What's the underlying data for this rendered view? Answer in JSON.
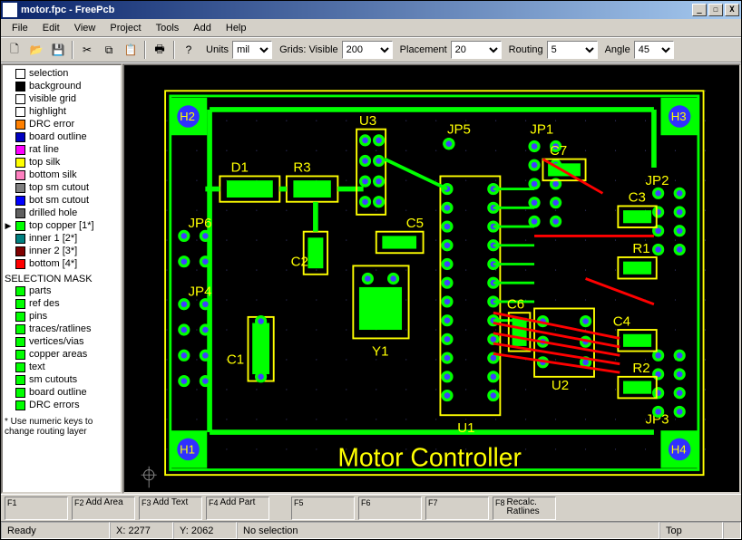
{
  "titlebar": {
    "title": "motor.fpc - FreePcb",
    "min": "_",
    "max": "☐",
    "close": "X"
  },
  "menu": [
    "File",
    "Edit",
    "View",
    "Project",
    "Tools",
    "Add",
    "Help"
  ],
  "toolbar": {
    "icons": [
      "new",
      "open",
      "save",
      "cut",
      "copy",
      "paste",
      "print",
      "help"
    ],
    "units_label": "Units",
    "units_val": "mil",
    "grids_label": "Grids: Visible",
    "grids_val": "200",
    "placement_label": "Placement",
    "placement_val": "20",
    "routing_label": "Routing",
    "routing_val": "5",
    "angle_label": "Angle",
    "angle_val": "45"
  },
  "layers": [
    {
      "c": "#ffffff",
      "t": "selection"
    },
    {
      "c": "#000000",
      "t": "background"
    },
    {
      "c": "#ffffff",
      "t": "visible grid"
    },
    {
      "c": "#ffffff",
      "t": "highlight"
    },
    {
      "c": "#ff8000",
      "t": "DRC error"
    },
    {
      "c": "#0000c0",
      "t": "board outline"
    },
    {
      "c": "#ff00ff",
      "t": "rat line"
    },
    {
      "c": "#ffff00",
      "t": "top silk"
    },
    {
      "c": "#ff80c0",
      "t": "bottom silk"
    },
    {
      "c": "#808080",
      "t": "top sm cutout"
    },
    {
      "c": "#0000ff",
      "t": "bot sm cutout"
    },
    {
      "c": "#606060",
      "t": "drilled hole"
    },
    {
      "c": "#00ff00",
      "t": "top copper  [1*]",
      "sel": true
    },
    {
      "c": "#008080",
      "t": "inner 1        [2*]"
    },
    {
      "c": "#800000",
      "t": "inner 2        [3*]"
    },
    {
      "c": "#ff0000",
      "t": "bottom       [4*]"
    }
  ],
  "mask_heading": "SELECTION MASK",
  "mask": [
    "parts",
    "ref des",
    "pins",
    "traces/ratlines",
    "vertices/vias",
    "copper areas",
    "text",
    "sm cutouts",
    "board outline",
    "DRC errors"
  ],
  "note": "* Use numeric keys to change routing layer",
  "fkeys": [
    {
      "k": "F1",
      "t": ""
    },
    {
      "k": "F2",
      "t": "Add Area"
    },
    {
      "k": "F3",
      "t": "Add Text"
    },
    {
      "k": "F4",
      "t": "Add Part"
    },
    {
      "k": "F5",
      "t": ""
    },
    {
      "k": "F6",
      "t": ""
    },
    {
      "k": "F7",
      "t": ""
    },
    {
      "k": "F8",
      "t": "Recalc. Ratlines"
    }
  ],
  "status": {
    "ready": "Ready",
    "x": "X: 2277",
    "y": "Y: 2062",
    "sel": "No selection",
    "layer": "Top"
  },
  "pcb": {
    "bg": "#000000",
    "silk": "#ffff00",
    "copper_top": "#00ff00",
    "copper_bot": "#ff0000",
    "pad": "#00ff00",
    "via_ring": "#00ff00",
    "via_hole": "#4040ff",
    "mount_cu": "#00ff00",
    "mount_hole": "#3030ff",
    "title_text": "Motor Controller",
    "refs": [
      "D1",
      "R3",
      "U3",
      "JP5",
      "JP1",
      "C7",
      "JP2",
      "JP6",
      "C2",
      "C5",
      "C3",
      "R1",
      "JP4",
      "C1",
      "Y1",
      "C6",
      "U2",
      "C4",
      "R2",
      "JP3",
      "U1",
      "H1",
      "H2",
      "H3",
      "H4"
    ]
  }
}
